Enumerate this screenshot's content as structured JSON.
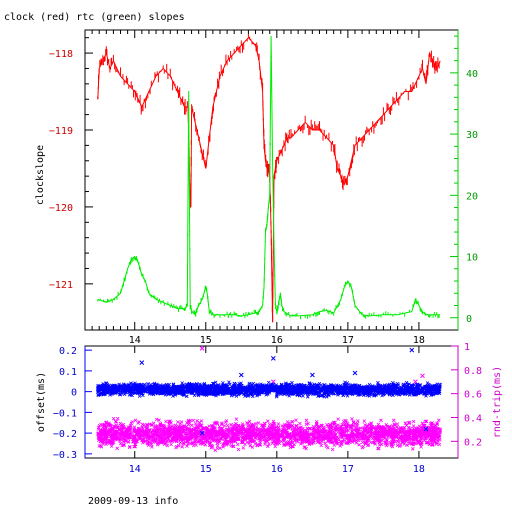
{
  "chart_data": [
    {
      "type": "line",
      "title": "clock (red) rtc (green) slopes",
      "ylabel": "clockslope",
      "xlim": [
        13.3,
        18.55
      ],
      "ylim_left": [
        -121.6,
        -117.7
      ],
      "ylim_right": [
        -2,
        47
      ],
      "x_ticks": [
        14,
        15,
        16,
        17,
        18
      ],
      "y_ticks_left": [
        -118,
        -119,
        -120,
        -121
      ],
      "y_ticks_right": [
        0,
        10,
        20,
        30,
        40
      ],
      "series": [
        {
          "color": "#ff0000",
          "axis": "left",
          "x": [
            13.48,
            13.5,
            13.55,
            13.6,
            13.65,
            13.7,
            13.8,
            13.9,
            14.0,
            14.05,
            14.1,
            14.2,
            14.3,
            14.4,
            14.5,
            14.6,
            14.65,
            14.7,
            14.75,
            14.78,
            14.79,
            14.8,
            14.85,
            14.9,
            14.95,
            15.0,
            15.05,
            15.1,
            15.15,
            15.2,
            15.3,
            15.4,
            15.5,
            15.6,
            15.7,
            15.75,
            15.8,
            15.82,
            15.84,
            15.86,
            15.88,
            15.9,
            15.92,
            15.94,
            15.96,
            15.98,
            16.0,
            16.05,
            16.1,
            16.15,
            16.2,
            16.3,
            16.4,
            16.5,
            16.6,
            16.7,
            16.8,
            16.85,
            16.9,
            16.95,
            17.0,
            17.05,
            17.1,
            17.2,
            17.3,
            17.4,
            17.5,
            17.6,
            17.7,
            17.8,
            17.9,
            18.0,
            18.05,
            18.1,
            18.15,
            18.2,
            18.25,
            18.3
          ],
          "y": [
            -118.6,
            -118.2,
            -118.1,
            -118.0,
            -118.2,
            -118.1,
            -118.3,
            -118.4,
            -118.5,
            -118.6,
            -118.7,
            -118.5,
            -118.3,
            -118.2,
            -118.3,
            -118.5,
            -118.6,
            -118.7,
            -118.7,
            -119.9,
            -120.0,
            -118.7,
            -118.9,
            -119.1,
            -119.3,
            -119.5,
            -119.1,
            -118.7,
            -118.5,
            -118.3,
            -118.1,
            -118.0,
            -117.9,
            -117.8,
            -117.9,
            -118.1,
            -118.5,
            -119.2,
            -119.4,
            -119.5,
            -119.5,
            -119.6,
            -120.3,
            -121.5,
            -119.6,
            -119.5,
            -119.4,
            -119.3,
            -119.2,
            -119.1,
            -119.1,
            -119.0,
            -118.9,
            -119.0,
            -119.0,
            -119.1,
            -119.2,
            -119.5,
            -119.6,
            -119.7,
            -119.6,
            -119.4,
            -119.2,
            -119.1,
            -119.0,
            -118.9,
            -118.8,
            -118.7,
            -118.6,
            -118.5,
            -118.5,
            -118.3,
            -118.2,
            -118.4,
            -118.0,
            -118.1,
            -118.2,
            -118.1
          ]
        },
        {
          "color": "#00ee00",
          "axis": "right",
          "x": [
            13.48,
            13.6,
            13.7,
            13.8,
            13.85,
            13.9,
            13.95,
            14.0,
            14.05,
            14.1,
            14.15,
            14.2,
            14.3,
            14.4,
            14.5,
            14.6,
            14.7,
            14.74,
            14.76,
            14.77,
            14.78,
            14.8,
            14.85,
            14.9,
            14.95,
            15.0,
            15.02,
            15.05,
            15.1,
            15.2,
            15.3,
            15.4,
            15.5,
            15.6,
            15.7,
            15.75,
            15.8,
            15.82,
            15.84,
            15.86,
            15.88,
            15.9,
            15.92,
            15.94,
            15.96,
            15.98,
            16.0,
            16.02,
            16.05,
            16.07,
            16.1,
            16.2,
            16.3,
            16.5,
            16.6,
            16.7,
            16.8,
            16.9,
            16.95,
            17.0,
            17.05,
            17.1,
            17.2,
            17.3,
            17.5,
            17.7,
            17.9,
            17.95,
            18.0,
            18.05,
            18.1,
            18.2,
            18.3
          ],
          "y": [
            3,
            2.5,
            3,
            4,
            6,
            8,
            9.5,
            10,
            9,
            7,
            6,
            4,
            3,
            2.5,
            2,
            1.5,
            1.5,
            2,
            37,
            20,
            2,
            1,
            0.5,
            2,
            3,
            5,
            4,
            1,
            0.5,
            0.5,
            0.5,
            0.5,
            0.3,
            0.5,
            0.8,
            1,
            2,
            5,
            14,
            15,
            18,
            20,
            46,
            25,
            12,
            2,
            1,
            2,
            4,
            2,
            1,
            0.3,
            0.3,
            0.5,
            1,
            1.2,
            0.8,
            3,
            5,
            6,
            5,
            2,
            0.5,
            0.3,
            0.5,
            0.5,
            1,
            3,
            2,
            1,
            0.5,
            0.5,
            0.5
          ]
        }
      ]
    },
    {
      "type": "scatter",
      "ylabel_left": "offset(ms)",
      "ylabel_right": "rnd-trip(ms)",
      "xlim": [
        13.3,
        18.55
      ],
      "ylim_left": [
        -0.32,
        0.22
      ],
      "ylim_right": [
        0.06,
        1.0
      ],
      "x_ticks": [
        14,
        15,
        16,
        17,
        18
      ],
      "y_ticks_left": [
        "0.2",
        "0.1",
        "0",
        "-0.1",
        "-0.2",
        "-0.3"
      ],
      "y_ticks_right": [
        "1",
        "0.8",
        "0.6",
        "0.4",
        "0.2"
      ],
      "series": [
        {
          "color": "#0000ff",
          "axis": "left",
          "band_center": 0.01,
          "band_spread": 0.025,
          "outliers_x": [
            14.1,
            14.95,
            15.5,
            15.95,
            16.5,
            17.1,
            17.9,
            18.1
          ],
          "outliers_y": [
            0.14,
            -0.2,
            0.08,
            0.16,
            0.08,
            0.09,
            0.2,
            -0.18
          ]
        },
        {
          "color": "#ff00ff",
          "axis": "right",
          "band_center": 0.26,
          "band_spread": 0.09,
          "outliers_x": [
            14.95,
            15.95,
            17.95,
            18.05
          ],
          "outliers_y": [
            0.98,
            0.7,
            0.7,
            0.75
          ]
        }
      ]
    }
  ],
  "footer": "2009-09-13 info"
}
